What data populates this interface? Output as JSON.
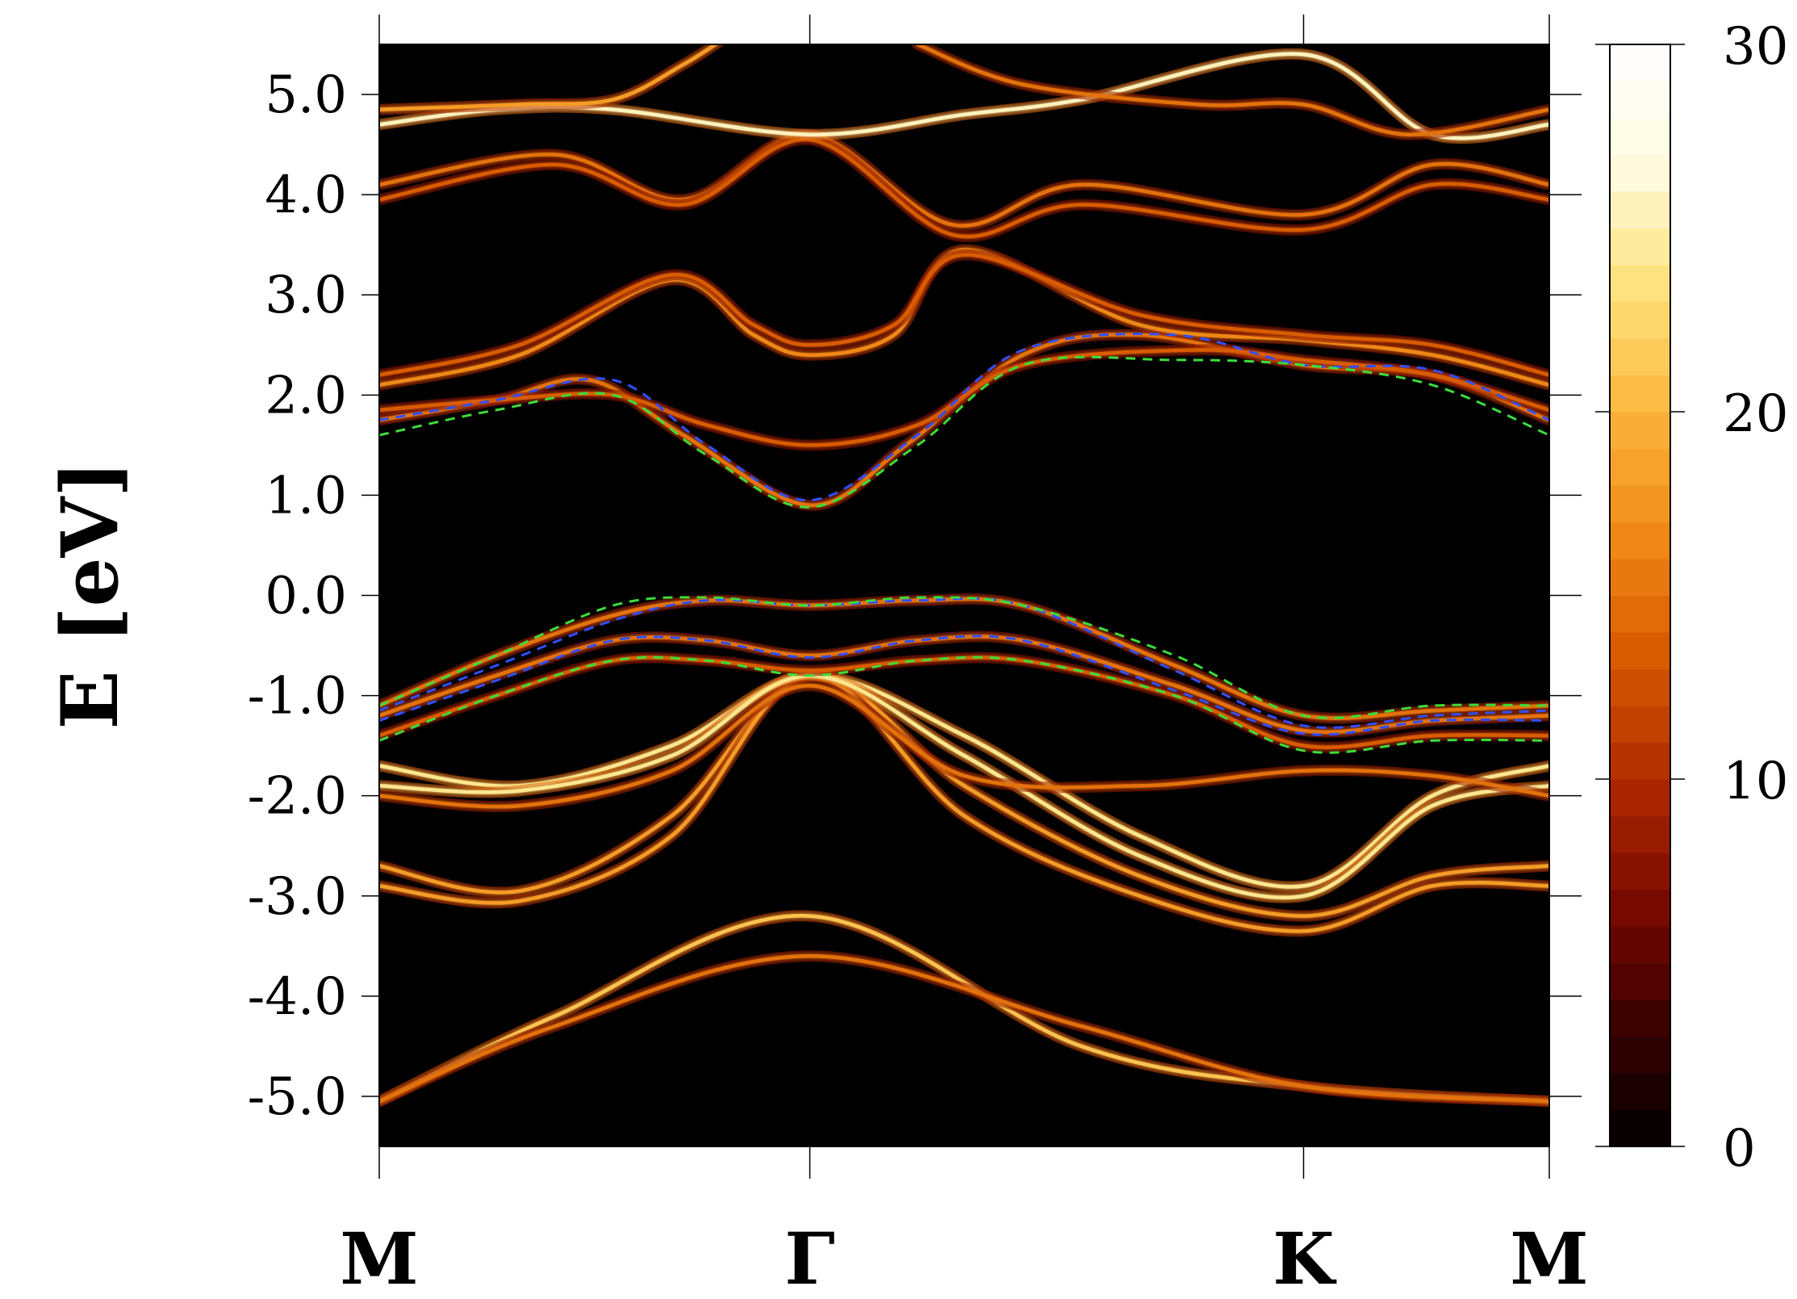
{
  "chart_data": {
    "type": "heatmap",
    "title": "",
    "ylabel": "E [eV]",
    "xlabel": "",
    "ylim": [
      -5.5,
      5.5
    ],
    "yticks": [
      5.0,
      4.0,
      3.0,
      2.0,
      1.0,
      0.0,
      -1.0,
      -2.0,
      -3.0,
      -4.0,
      -5.0
    ],
    "ytick_labels": [
      "5.0",
      "4.0",
      "3.0",
      "2.0",
      "1.0",
      "0.0",
      "-1.0",
      "-2.0",
      "-3.0",
      "-4.0",
      "-5.0"
    ],
    "kpoints": [
      {
        "label": "M",
        "pos": 0.0
      },
      {
        "label": "Γ",
        "pos": 0.368
      },
      {
        "label": "K",
        "pos": 0.79
      },
      {
        "label": "M",
        "pos": 1.0
      }
    ],
    "colorbar": {
      "min": 0,
      "max": 30,
      "ticks": [
        0,
        10,
        20,
        30
      ],
      "tick_labels": [
        "0",
        "10",
        "20",
        "30"
      ],
      "colors": [
        "#000000",
        "#3a0000",
        "#7a0a00",
        "#b02a00",
        "#d85a00",
        "#f08a18",
        "#fbb63c",
        "#fde27a",
        "#fffbe0",
        "#ffffff"
      ]
    },
    "background_color": "#000000",
    "bands": [
      {
        "name": "",
        "x": [
          0,
          0.15,
          0.368,
          0.6,
          0.79,
          1.0
        ],
        "y": [
          -5.05,
          -4.2,
          -3.2,
          -4.5,
          -4.9,
          -5.05
        ],
        "intensity": 0.7
      },
      {
        "name": "",
        "x": [
          0,
          0.15,
          0.368,
          0.6,
          0.79,
          1.0
        ],
        "y": [
          -5.05,
          -4.3,
          -3.6,
          -4.3,
          -4.9,
          -5.05
        ],
        "intensity": 0.5
      },
      {
        "name": "",
        "x": [
          0,
          0.12,
          0.25,
          0.368,
          0.5,
          0.65,
          0.79,
          0.9,
          1.0
        ],
        "y": [
          -2.7,
          -2.95,
          -2.2,
          -0.8,
          -1.9,
          -2.8,
          -3.2,
          -2.8,
          -2.7
        ],
        "intensity": 0.6
      },
      {
        "name": "",
        "x": [
          0,
          0.12,
          0.25,
          0.368,
          0.5,
          0.65,
          0.79,
          0.9,
          1.0
        ],
        "y": [
          -2.9,
          -3.05,
          -2.4,
          -0.8,
          -2.2,
          -3.0,
          -3.35,
          -2.9,
          -2.9
        ],
        "intensity": 0.6
      },
      {
        "name": "",
        "x": [
          0,
          0.12,
          0.25,
          0.368,
          0.5,
          0.65,
          0.79,
          0.9,
          1.0
        ],
        "y": [
          -1.7,
          -1.9,
          -1.5,
          -0.8,
          -1.4,
          -2.4,
          -2.9,
          -2.0,
          -1.7
        ],
        "intensity": 0.8
      },
      {
        "name": "",
        "x": [
          0,
          0.12,
          0.25,
          0.368,
          0.5,
          0.65,
          0.79,
          0.9,
          1.0
        ],
        "y": [
          -1.9,
          -1.95,
          -1.6,
          -0.8,
          -1.6,
          -2.6,
          -3.0,
          -2.1,
          -1.9
        ],
        "intensity": 0.8
      },
      {
        "name": "",
        "x": [
          0,
          0.12,
          0.25,
          0.368,
          0.5,
          0.65,
          0.79,
          0.9,
          1.0
        ],
        "y": [
          -2.0,
          -2.1,
          -1.75,
          -0.9,
          -1.8,
          -1.9,
          -1.75,
          -1.8,
          -2.0
        ],
        "intensity": 0.5
      },
      {
        "name": "",
        "x": [
          0,
          0.1,
          0.2,
          0.28,
          0.368,
          0.46,
          0.55,
          0.68,
          0.79,
          0.9,
          1.0
        ],
        "y": [
          -1.1,
          -0.6,
          -0.2,
          -0.05,
          -0.1,
          -0.05,
          -0.1,
          -0.7,
          -1.2,
          -1.15,
          -1.1
        ],
        "intensity": 0.5
      },
      {
        "name": "",
        "x": [
          0,
          0.1,
          0.2,
          0.28,
          0.368,
          0.46,
          0.55,
          0.68,
          0.79,
          0.9,
          1.0
        ],
        "y": [
          -1.2,
          -0.8,
          -0.45,
          -0.45,
          -0.6,
          -0.45,
          -0.45,
          -0.9,
          -1.35,
          -1.25,
          -1.2
        ],
        "intensity": 0.5
      },
      {
        "name": "",
        "x": [
          0,
          0.1,
          0.2,
          0.28,
          0.368,
          0.46,
          0.55,
          0.68,
          0.79,
          0.9,
          1.0
        ],
        "y": [
          -1.4,
          -1.0,
          -0.65,
          -0.65,
          -0.75,
          -0.65,
          -0.65,
          -1.0,
          -1.5,
          -1.4,
          -1.4
        ],
        "intensity": 0.45
      },
      {
        "name": "",
        "x": [
          0,
          0.1,
          0.18,
          0.26,
          0.368,
          0.45,
          0.55,
          0.65,
          0.79,
          0.9,
          1.0
        ],
        "y": [
          1.75,
          1.95,
          2.15,
          1.6,
          0.9,
          1.5,
          2.4,
          2.6,
          2.3,
          2.2,
          1.75
        ],
        "intensity": 0.5
      },
      {
        "name": "",
        "x": [
          0,
          0.1,
          0.2,
          0.28,
          0.368,
          0.46,
          0.55,
          0.7,
          0.79,
          0.9,
          1.0
        ],
        "y": [
          1.85,
          1.95,
          2.0,
          1.7,
          1.5,
          1.7,
          2.3,
          2.45,
          2.35,
          2.2,
          1.85
        ],
        "intensity": 0.45
      },
      {
        "name": "",
        "x": [
          0,
          0.12,
          0.25,
          0.32,
          0.368,
          0.44,
          0.5,
          0.65,
          0.79,
          0.9,
          1.0
        ],
        "y": [
          2.1,
          2.4,
          3.15,
          2.6,
          2.4,
          2.6,
          3.45,
          2.7,
          2.55,
          2.4,
          2.1
        ],
        "intensity": 0.55
      },
      {
        "name": "",
        "x": [
          0,
          0.12,
          0.25,
          0.32,
          0.368,
          0.44,
          0.5,
          0.65,
          0.79,
          0.9,
          1.0
        ],
        "y": [
          2.2,
          2.5,
          3.2,
          2.7,
          2.5,
          2.7,
          3.4,
          2.8,
          2.6,
          2.5,
          2.2
        ],
        "intensity": 0.45
      },
      {
        "name": "",
        "x": [
          0,
          0.15,
          0.26,
          0.368,
          0.49,
          0.6,
          0.79,
          0.9,
          1.0
        ],
        "y": [
          4.1,
          4.4,
          3.95,
          4.6,
          3.7,
          4.1,
          3.8,
          4.3,
          4.1
        ],
        "intensity": 0.5
      },
      {
        "name": "",
        "x": [
          0,
          0.15,
          0.26,
          0.368,
          0.49,
          0.6,
          0.79,
          0.9,
          1.0
        ],
        "y": [
          3.95,
          4.3,
          3.9,
          4.55,
          3.6,
          3.9,
          3.65,
          4.1,
          3.95
        ],
        "intensity": 0.45
      },
      {
        "name": "",
        "x": [
          0,
          0.1,
          0.2,
          0.368,
          0.5,
          0.6,
          0.79,
          0.9,
          1.0
        ],
        "y": [
          4.7,
          4.85,
          4.85,
          4.6,
          4.8,
          4.95,
          5.4,
          4.6,
          4.7
        ],
        "intensity": 0.85
      },
      {
        "name": "",
        "x": [
          0,
          0.12,
          0.2,
          0.26,
          0.3
        ],
        "y": [
          4.85,
          4.9,
          4.95,
          5.3,
          5.6
        ],
        "intensity": 0.6
      },
      {
        "name": "",
        "x": [
          0.46,
          0.55,
          0.7,
          0.79,
          0.88,
          1.0
        ],
        "y": [
          5.5,
          5.1,
          4.9,
          4.9,
          4.6,
          4.85
        ],
        "intensity": 0.5
      }
    ],
    "overlays": [
      {
        "name": "",
        "color": "#3050ff",
        "style": "dashed",
        "x": [
          0,
          0.1,
          0.2,
          0.28,
          0.368,
          0.46,
          0.55,
          0.68,
          0.79,
          0.9,
          1.0
        ],
        "y": [
          1.75,
          1.95,
          2.15,
          1.5,
          0.95,
          1.6,
          2.45,
          2.6,
          2.3,
          2.25,
          1.75
        ]
      },
      {
        "name": "",
        "color": "#3cdc3c",
        "style": "dashed",
        "x": [
          0,
          0.1,
          0.2,
          0.28,
          0.368,
          0.46,
          0.55,
          0.68,
          0.79,
          0.9,
          1.0
        ],
        "y": [
          1.6,
          1.85,
          2.0,
          1.4,
          0.88,
          1.5,
          2.3,
          2.35,
          2.3,
          2.1,
          1.6
        ]
      },
      {
        "name": "",
        "color": "#3050ff",
        "style": "dashed",
        "x": [
          0,
          0.1,
          0.2,
          0.28,
          0.368,
          0.46,
          0.55,
          0.68,
          0.79,
          0.9,
          1.0
        ],
        "y": [
          -1.15,
          -0.7,
          -0.25,
          -0.05,
          -0.1,
          -0.05,
          -0.1,
          -0.75,
          -1.3,
          -1.2,
          -1.15
        ]
      },
      {
        "name": "",
        "color": "#3050ff",
        "style": "dashed",
        "x": [
          0,
          0.1,
          0.2,
          0.28,
          0.368,
          0.46,
          0.55,
          0.68,
          0.79,
          0.9,
          1.0
        ],
        "y": [
          -1.25,
          -0.85,
          -0.45,
          -0.45,
          -0.62,
          -0.45,
          -0.45,
          -0.95,
          -1.38,
          -1.25,
          -1.25
        ]
      },
      {
        "name": "",
        "color": "#3cdc3c",
        "style": "dashed",
        "x": [
          0,
          0.1,
          0.2,
          0.28,
          0.368,
          0.46,
          0.55,
          0.68,
          0.79,
          0.9,
          1.0
        ],
        "y": [
          -1.1,
          -0.6,
          -0.1,
          -0.02,
          -0.1,
          -0.02,
          -0.1,
          -0.6,
          -1.2,
          -1.1,
          -1.1
        ]
      },
      {
        "name": "",
        "color": "#3cdc3c",
        "style": "dashed",
        "x": [
          0,
          0.1,
          0.2,
          0.28,
          0.368,
          0.46,
          0.55,
          0.68,
          0.79,
          0.9,
          1.0
        ],
        "y": [
          -1.45,
          -1.0,
          -0.65,
          -0.65,
          -0.8,
          -0.65,
          -0.65,
          -1.0,
          -1.55,
          -1.45,
          -1.45
        ]
      }
    ]
  }
}
